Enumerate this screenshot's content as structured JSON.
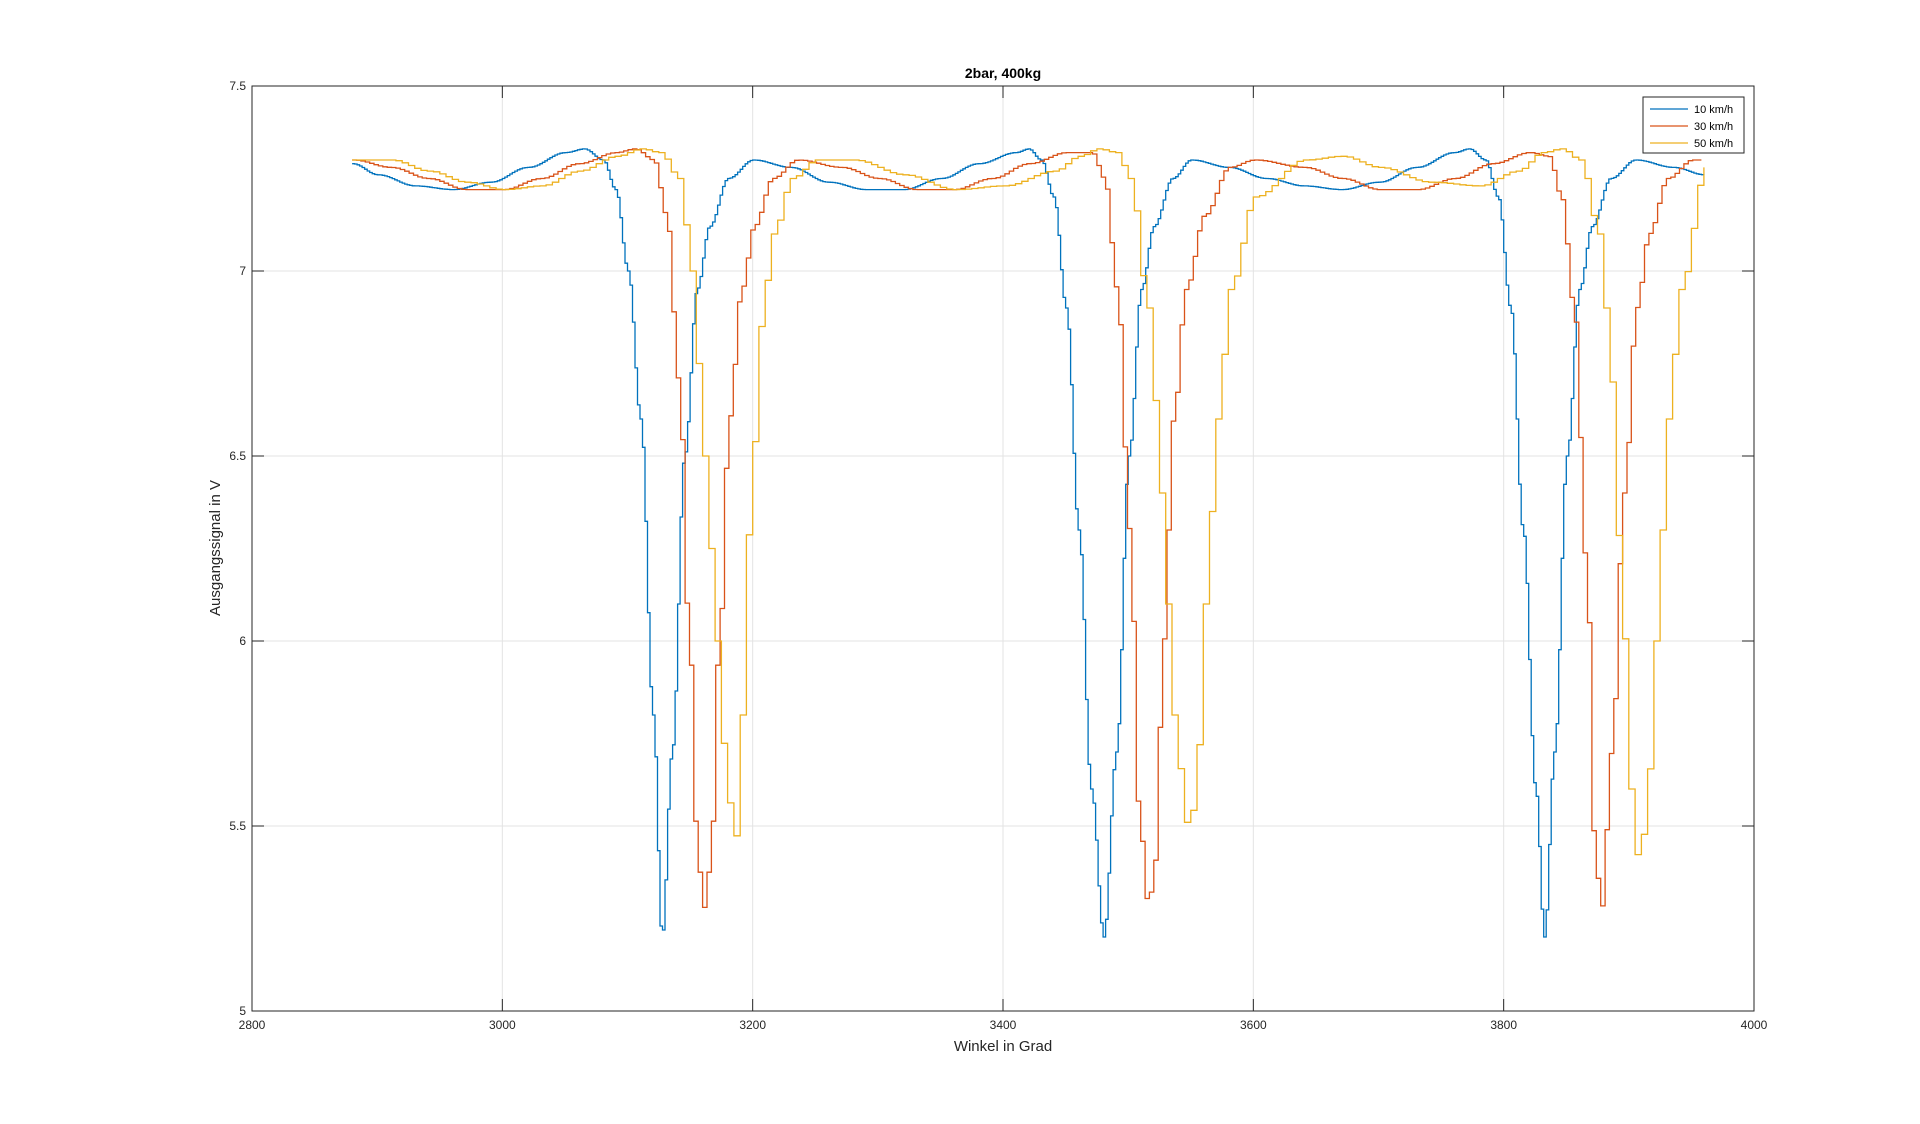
{
  "chart_data": {
    "type": "line",
    "title": "2bar, 400kg",
    "xlabel": "Winkel in Grad",
    "ylabel": "Ausgangssignal in V",
    "xlim": [
      2800,
      4000
    ],
    "ylim": [
      5,
      7.5
    ],
    "xticks": [
      2800,
      3000,
      3200,
      3400,
      3600,
      3800,
      4000
    ],
    "yticks": [
      5,
      5.5,
      6,
      6.5,
      7,
      7.5
    ],
    "xtick_labels": [
      "2800",
      "3000",
      "3200",
      "3400",
      "3600",
      "3800",
      "4000"
    ],
    "ytick_labels": [
      "5",
      "5.5",
      "6",
      "6.5",
      "7",
      "7.5"
    ],
    "grid": true,
    "legend_position": "top-right",
    "step_style": true,
    "series": [
      {
        "name": "10 km/h",
        "color": "#0072BD",
        "x": [
          2880,
          2900,
          2930,
          2960,
          2990,
          3020,
          3050,
          3065,
          3080,
          3090,
          3100,
          3110,
          3120,
          3127,
          3135,
          3145,
          3155,
          3165,
          3180,
          3200,
          3230,
          3260,
          3290,
          3320,
          3350,
          3380,
          3410,
          3420,
          3430,
          3440,
          3450,
          3460,
          3470,
          3480,
          3490,
          3500,
          3510,
          3520,
          3535,
          3550,
          3580,
          3610,
          3640,
          3670,
          3700,
          3730,
          3760,
          3772,
          3785,
          3795,
          3805,
          3815,
          3825,
          3832,
          3840,
          3850,
          3860,
          3870,
          3885,
          3905,
          3935,
          3960
        ],
        "y": [
          7.29,
          7.26,
          7.23,
          7.22,
          7.24,
          7.28,
          7.32,
          7.33,
          7.3,
          7.22,
          7.0,
          6.6,
          5.8,
          5.2,
          5.7,
          6.5,
          6.95,
          7.12,
          7.25,
          7.3,
          7.28,
          7.24,
          7.22,
          7.22,
          7.25,
          7.29,
          7.32,
          7.33,
          7.3,
          7.2,
          6.9,
          6.3,
          5.6,
          5.2,
          5.7,
          6.5,
          6.95,
          7.12,
          7.25,
          7.3,
          7.28,
          7.25,
          7.23,
          7.22,
          7.24,
          7.28,
          7.32,
          7.33,
          7.3,
          7.2,
          6.9,
          6.3,
          5.6,
          5.2,
          5.7,
          6.5,
          6.95,
          7.12,
          7.25,
          7.3,
          7.28,
          7.26
        ]
      },
      {
        "name": "30 km/h",
        "color": "#D95319",
        "x": [
          2880,
          2910,
          2940,
          2970,
          3000,
          3030,
          3060,
          3090,
          3105,
          3120,
          3130,
          3140,
          3148,
          3155,
          3160,
          3165,
          3172,
          3180,
          3190,
          3200,
          3215,
          3235,
          3270,
          3300,
          3330,
          3360,
          3390,
          3420,
          3450,
          3470,
          3480,
          3490,
          3500,
          3508,
          3515,
          3520,
          3527,
          3535,
          3545,
          3560,
          3580,
          3600,
          3640,
          3670,
          3700,
          3730,
          3760,
          3790,
          3820,
          3835,
          3845,
          3855,
          3865,
          3872,
          3877,
          3885,
          3895,
          3905,
          3915,
          3930,
          3950,
          3960
        ],
        "y": [
          7.3,
          7.28,
          7.25,
          7.22,
          7.22,
          7.25,
          7.29,
          7.32,
          7.33,
          7.3,
          7.15,
          6.7,
          6.0,
          5.4,
          5.28,
          5.4,
          6.0,
          6.6,
          6.95,
          7.12,
          7.25,
          7.3,
          7.28,
          7.25,
          7.22,
          7.22,
          7.25,
          7.29,
          7.32,
          7.32,
          7.25,
          6.95,
          6.3,
          5.5,
          5.28,
          5.4,
          6.0,
          6.6,
          6.95,
          7.15,
          7.28,
          7.3,
          7.28,
          7.25,
          7.22,
          7.22,
          7.25,
          7.29,
          7.32,
          7.31,
          7.2,
          6.9,
          6.2,
          5.4,
          5.28,
          5.7,
          6.4,
          6.9,
          7.1,
          7.25,
          7.3,
          7.3
        ]
      },
      {
        "name": "50 km/h",
        "color": "#EDB120",
        "x": [
          2880,
          2910,
          2940,
          2970,
          3000,
          3030,
          3060,
          3090,
          3110,
          3125,
          3140,
          3150,
          3160,
          3170,
          3178,
          3184,
          3190,
          3197,
          3205,
          3215,
          3230,
          3250,
          3280,
          3320,
          3360,
          3400,
          3440,
          3460,
          3475,
          3490,
          3500,
          3515,
          3525,
          3535,
          3545,
          3552,
          3560,
          3570,
          3580,
          3600,
          3640,
          3670,
          3700,
          3740,
          3780,
          3810,
          3830,
          3845,
          3860,
          3875,
          3885,
          3893,
          3900,
          3906,
          3912,
          3920,
          3930,
          3940,
          3960
        ],
        "y": [
          7.3,
          7.3,
          7.27,
          7.24,
          7.22,
          7.23,
          7.27,
          7.31,
          7.33,
          7.32,
          7.25,
          7.0,
          6.5,
          6.0,
          5.6,
          5.45,
          5.8,
          6.4,
          6.85,
          7.1,
          7.25,
          7.3,
          7.3,
          7.26,
          7.22,
          7.23,
          7.27,
          7.31,
          7.33,
          7.32,
          7.25,
          6.9,
          6.4,
          5.8,
          5.51,
          5.55,
          6.1,
          6.6,
          6.95,
          7.2,
          7.3,
          7.31,
          7.28,
          7.24,
          7.23,
          7.27,
          7.32,
          7.33,
          7.3,
          7.1,
          6.7,
          6.1,
          5.6,
          5.41,
          5.5,
          6.0,
          6.6,
          6.95,
          7.28
        ]
      }
    ]
  }
}
